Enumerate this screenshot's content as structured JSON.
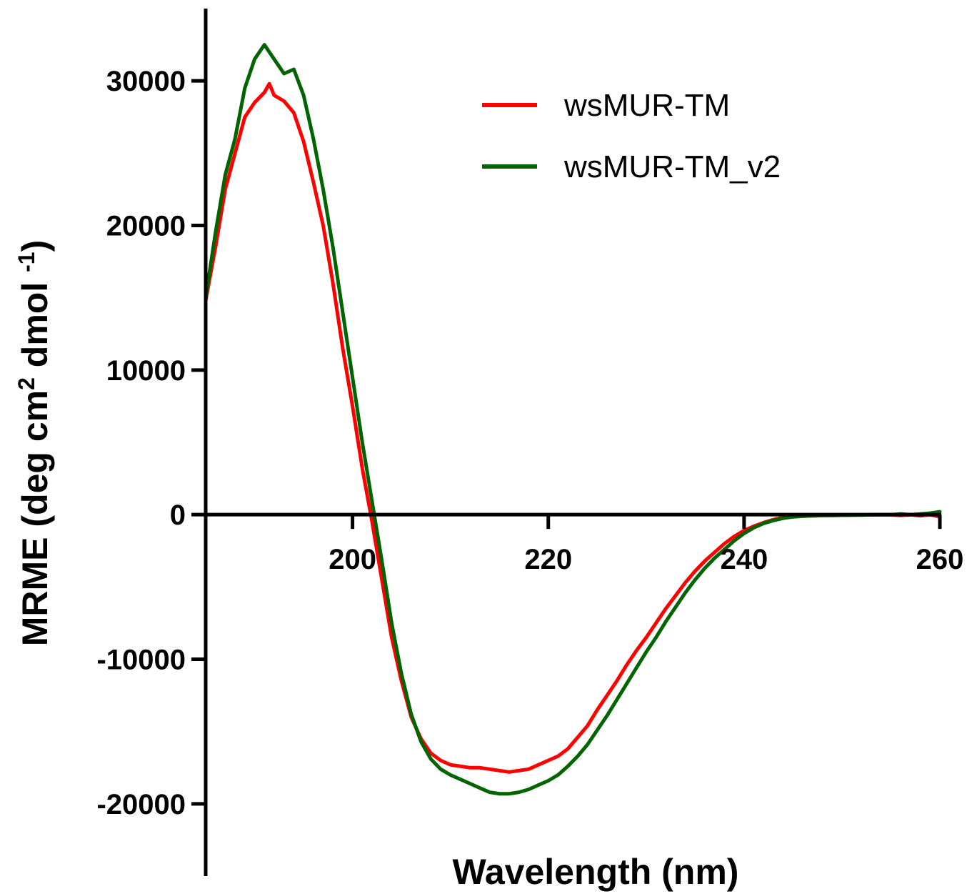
{
  "chart_data": {
    "type": "line",
    "xlabel": "Wavelength (nm)",
    "ylabel_parts": [
      "MRME (deg cm",
      "2",
      " dmol ",
      "-1",
      ")"
    ],
    "xlim": [
      185,
      260
    ],
    "ylim": [
      -25000,
      35000
    ],
    "x_ticks": [
      200,
      220,
      240,
      260
    ],
    "y_ticks": [
      -20000,
      -10000,
      0,
      10000,
      20000,
      30000
    ],
    "legend_position": "top-right",
    "series": [
      {
        "name": "wsMUR-TM",
        "color": "#ff0000",
        "x": [
          185,
          186,
          187,
          188,
          189,
          190,
          191,
          191.5,
          192,
          193,
          194,
          195,
          196,
          197,
          198,
          199,
          200,
          201,
          202,
          203,
          204,
          205,
          206,
          207,
          208,
          209,
          210,
          211,
          212,
          213,
          214,
          215,
          216,
          217,
          218,
          219,
          220,
          221,
          222,
          223,
          224,
          225,
          226,
          227,
          228,
          229,
          230,
          231,
          232,
          233,
          234,
          235,
          236,
          237,
          238,
          239,
          240,
          241,
          242,
          243,
          244,
          245,
          246,
          247,
          248,
          249,
          250,
          251,
          252,
          253,
          254,
          255,
          256,
          257,
          258,
          259,
          260
        ],
        "y": [
          14800,
          18500,
          22500,
          25000,
          27500,
          28500,
          29200,
          29800,
          29000,
          28600,
          27800,
          25800,
          23000,
          20000,
          16000,
          11500,
          7500,
          3200,
          -500,
          -4500,
          -8500,
          -11500,
          -14000,
          -15500,
          -16500,
          -17000,
          -17300,
          -17400,
          -17500,
          -17500,
          -17600,
          -17700,
          -17800,
          -17700,
          -17600,
          -17300,
          -17000,
          -16700,
          -16200,
          -15400,
          -14600,
          -13500,
          -12500,
          -11500,
          -10400,
          -9400,
          -8500,
          -7500,
          -6500,
          -5600,
          -4700,
          -3900,
          -3200,
          -2600,
          -2000,
          -1500,
          -1100,
          -800,
          -550,
          -350,
          -200,
          -150,
          -100,
          -80,
          -60,
          -50,
          -40,
          -30,
          -20,
          -10,
          0,
          0,
          -50,
          0,
          -80,
          0,
          -150
        ]
      },
      {
        "name": "wsMUR-TM_v2",
        "color": "#006400",
        "x": [
          185,
          186,
          187,
          188,
          189,
          190,
          191,
          192,
          193,
          194,
          195,
          196,
          197,
          198,
          199,
          200,
          201,
          202,
          203,
          204,
          205,
          206,
          207,
          208,
          209,
          210,
          211,
          212,
          213,
          214,
          215,
          216,
          217,
          218,
          219,
          220,
          221,
          222,
          223,
          224,
          225,
          226,
          227,
          228,
          229,
          230,
          231,
          232,
          233,
          234,
          235,
          236,
          237,
          238,
          239,
          240,
          241,
          242,
          243,
          244,
          245,
          246,
          247,
          248,
          249,
          250,
          251,
          252,
          253,
          254,
          255,
          256,
          257,
          258,
          259,
          260
        ],
        "y": [
          15000,
          19500,
          23500,
          26000,
          29500,
          31500,
          32500,
          31500,
          30500,
          30800,
          29000,
          26000,
          22500,
          18500,
          14000,
          9500,
          5000,
          900,
          -3200,
          -7500,
          -11000,
          -13800,
          -15700,
          -16900,
          -17600,
          -18000,
          -18300,
          -18600,
          -18900,
          -19200,
          -19300,
          -19300,
          -19200,
          -19000,
          -18700,
          -18400,
          -18000,
          -17400,
          -16700,
          -15900,
          -14900,
          -13900,
          -12800,
          -11700,
          -10600,
          -9500,
          -8500,
          -7400,
          -6400,
          -5400,
          -4500,
          -3700,
          -3000,
          -2400,
          -1800,
          -1300,
          -900,
          -600,
          -400,
          -250,
          -150,
          -100,
          -80,
          -60,
          -50,
          -40,
          -30,
          -20,
          -10,
          0,
          0,
          50,
          0,
          50,
          100,
          200
        ]
      }
    ]
  }
}
